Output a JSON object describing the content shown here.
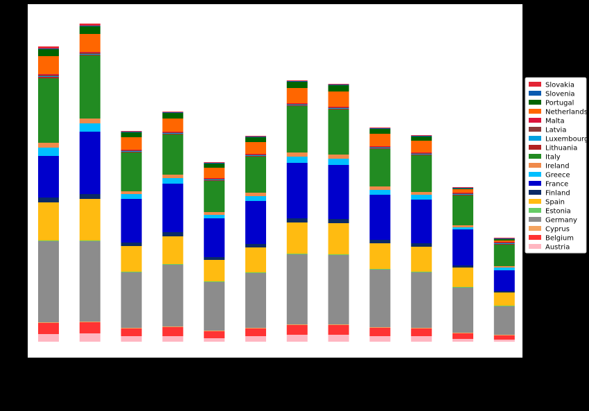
{
  "chart_data": {
    "type": "bar",
    "stacked": true,
    "categories": [
      "",
      "",
      "",
      "",
      "",
      "",
      "",
      "",
      "",
      "",
      "",
      ""
    ],
    "ylim": [
      0,
      480
    ],
    "grid": false,
    "legend_position": "right",
    "series": [
      {
        "name": "Austria",
        "color": "#FFB6C1",
        "values": [
          11,
          12,
          8,
          8,
          5,
          8,
          10,
          10,
          8,
          8,
          4,
          3
        ]
      },
      {
        "name": "Belgium",
        "color": "#FF3333",
        "values": [
          16,
          16,
          11,
          13,
          10,
          11,
          14,
          14,
          12,
          11,
          8,
          6
        ]
      },
      {
        "name": "Cyprus",
        "color": "#F4A460",
        "values": [
          1,
          1,
          1,
          1,
          1,
          1,
          1,
          1,
          1,
          1,
          1,
          1
        ]
      },
      {
        "name": "Germany",
        "color": "#8C8C8C",
        "values": [
          117,
          116,
          80,
          89,
          70,
          79,
          101,
          100,
          83,
          80,
          65,
          41
        ]
      },
      {
        "name": "Estonia",
        "color": "#66CC66",
        "values": [
          1,
          1,
          1,
          1,
          1,
          1,
          1,
          1,
          1,
          1,
          1,
          1
        ]
      },
      {
        "name": "Spain",
        "color": "#FFBB11",
        "values": [
          55,
          60,
          37,
          40,
          31,
          36,
          45,
          45,
          37,
          36,
          28,
          19
        ]
      },
      {
        "name": "Finland",
        "color": "#0A2A66",
        "values": [
          7,
          7,
          5,
          6,
          4,
          5,
          6,
          6,
          5,
          5,
          3,
          2
        ]
      },
      {
        "name": "France",
        "color": "#0000CC",
        "values": [
          60,
          90,
          63,
          70,
          56,
          62,
          80,
          78,
          65,
          63,
          52,
          30
        ]
      },
      {
        "name": "Greece",
        "color": "#00BFFF",
        "values": [
          12,
          12,
          7,
          8,
          5,
          7,
          9,
          9,
          7,
          7,
          3,
          4
        ]
      },
      {
        "name": "Ireland",
        "color": "#F08A4B",
        "values": [
          7,
          7,
          4,
          5,
          4,
          5,
          6,
          6,
          5,
          4,
          3,
          2
        ]
      },
      {
        "name": "Italy",
        "color": "#228B22",
        "values": [
          93,
          91,
          56,
          58,
          45,
          52,
          67,
          65,
          54,
          53,
          43,
          31
        ]
      },
      {
        "name": "Lithuania",
        "color": "#B22222",
        "values": [
          2,
          1,
          1,
          1,
          1,
          1,
          1,
          1,
          1,
          1,
          1,
          1
        ]
      },
      {
        "name": "Luxembourg",
        "color": "#00A0E0",
        "values": [
          1,
          1,
          1,
          1,
          1,
          1,
          1,
          1,
          1,
          1,
          1,
          1
        ]
      },
      {
        "name": "Latvia",
        "color": "#8B3A3A",
        "values": [
          2,
          2,
          1,
          1,
          1,
          1,
          1,
          1,
          1,
          1,
          1,
          1
        ]
      },
      {
        "name": "Malta",
        "color": "#DC143C",
        "values": [
          1,
          1,
          1,
          1,
          1,
          1,
          1,
          1,
          1,
          1,
          1,
          1
        ]
      },
      {
        "name": "Netherlands",
        "color": "#FF6600",
        "values": [
          26,
          26,
          18,
          19,
          15,
          17,
          22,
          22,
          18,
          17,
          5,
          2
        ]
      },
      {
        "name": "Portugal",
        "color": "#006400",
        "values": [
          10,
          11,
          7,
          8,
          6,
          7,
          9,
          9,
          7,
          6,
          1,
          2
        ]
      },
      {
        "name": "Slovenia",
        "color": "#0A5BB0",
        "values": [
          1,
          1,
          1,
          1,
          1,
          1,
          1,
          1,
          1,
          1,
          1,
          1
        ]
      },
      {
        "name": "Slovakia",
        "color": "#E32636",
        "values": [
          3,
          3,
          1,
          1,
          1,
          1,
          1,
          1,
          1,
          1,
          1,
          1
        ]
      }
    ]
  }
}
